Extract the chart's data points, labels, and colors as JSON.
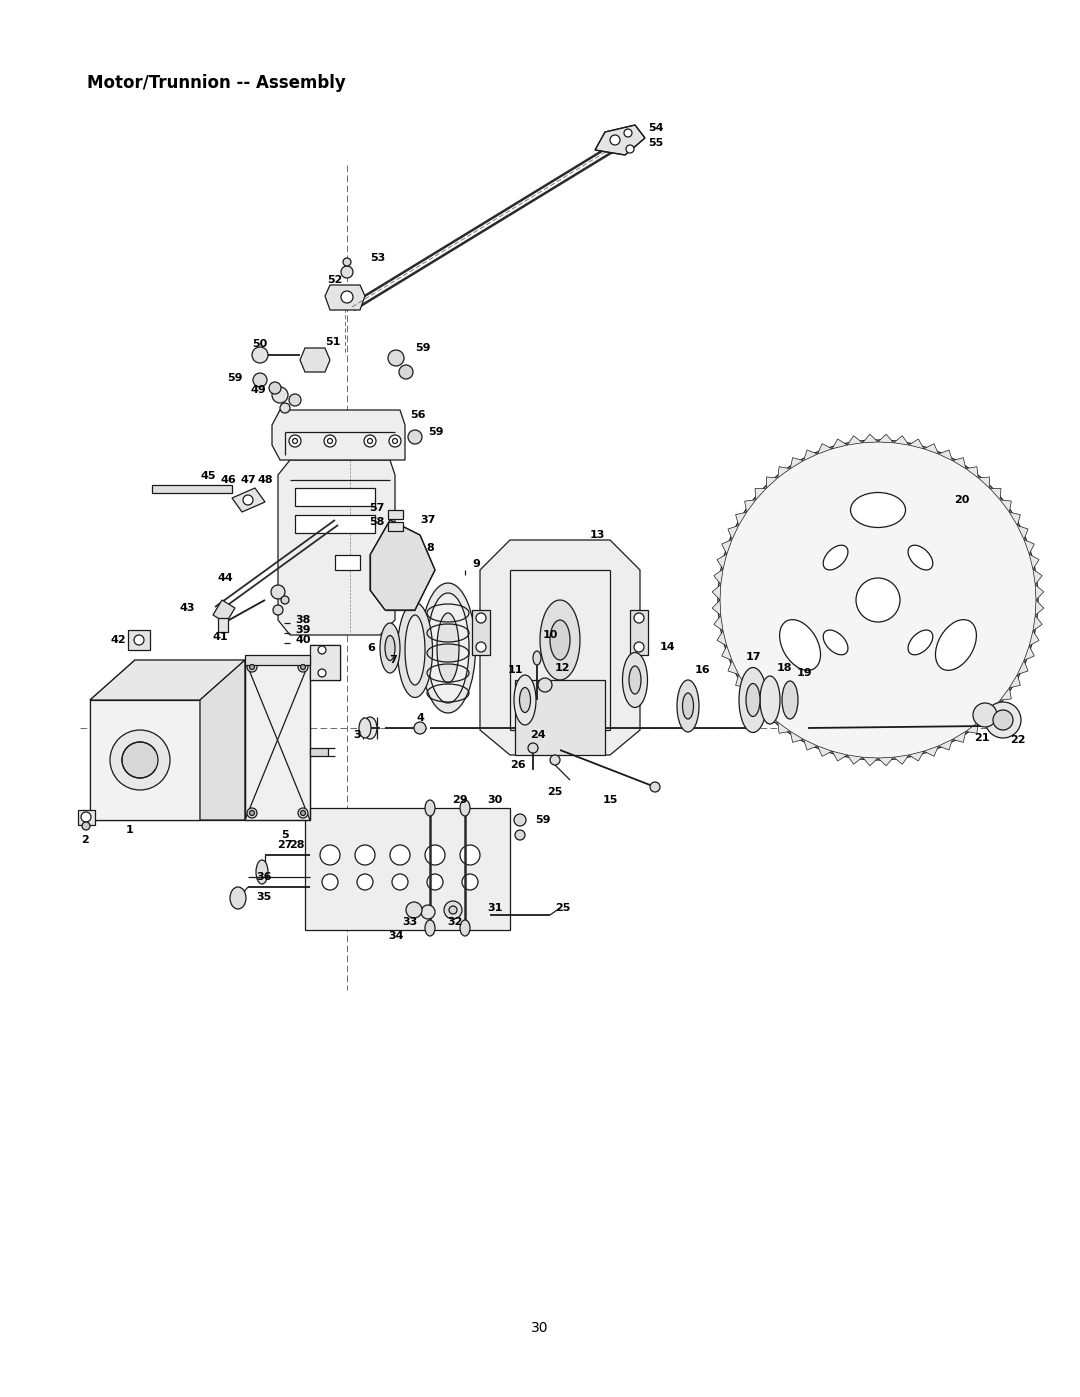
{
  "title": "Motor/Trunnion -- Assembly",
  "page_number": "30",
  "bg_color": "#ffffff",
  "text_color": "#000000",
  "title_fontsize": 12,
  "title_bold": true,
  "page_fontsize": 10,
  "label_fontsize": 9,
  "label_bold": true,
  "figsize": [
    10.8,
    13.97
  ],
  "dpi": 100,
  "line_color": "#1a1a1a",
  "lw": 0.9
}
